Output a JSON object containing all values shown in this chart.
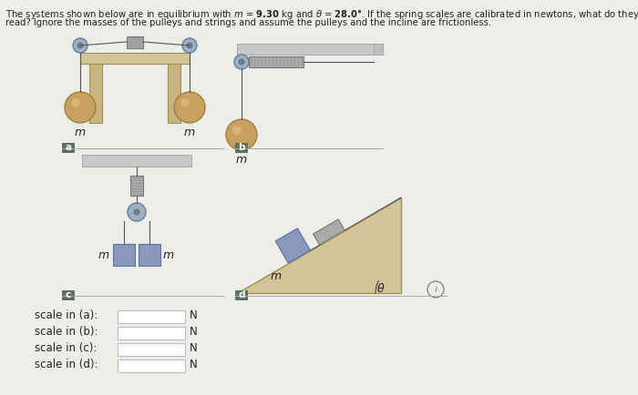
{
  "bg_color": "#ededea",
  "table_color": "#d4c49a",
  "table_leg_color": "#c8b480",
  "table_top_color": "#d4c49a",
  "ball_color": "#c8a060",
  "ball_sheen": "#e8c880",
  "box_color": "#8899bb",
  "spring_color": "#999999",
  "ceiling_color": "#c8c8c8",
  "incline_color": "#d4c49a",
  "label_bg": "#607060",
  "pulley_color": "#a0b0c0",
  "pulley_inner": "#708090",
  "string_color": "#555555",
  "text_color": "#222222",
  "highlight_red": "#cc2200",
  "scale_labels": [
    "scale in (a):",
    "scale in (b):",
    "scale in (c):",
    "scale in (d):"
  ],
  "title_1": "The systems shown below are in equilibrium with m = 9.30 kg and θ = 28.0°. If the spring scales are calibrated in newtons, what do they",
  "title_2": "read? Ignore the masses of the pulleys and strings and assume the pulleys and the incline are frictionless."
}
